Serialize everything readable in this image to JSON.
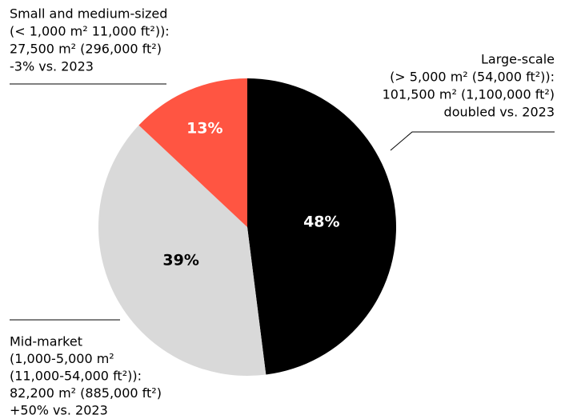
{
  "chart_data": {
    "type": "pie",
    "categories": [
      "Large-scale",
      "Mid-market",
      "Small and medium-sized"
    ],
    "details": [
      [
        "(> 5,000  m² (54,000 ft²)):",
        "101,500 m² (1,100,000 ft²)",
        "doubled vs. 2023"
      ],
      [
        "(1,000-5,000 m²",
        "(11,000-54,000 ft²)):",
        "82,200 m² (885,000 ft²)",
        "+50% vs. 2023"
      ],
      [
        "(< 1,000 m² 11,000 ft²)):",
        "27,500 m² (296,000 ft²)",
        "-3% vs. 2023"
      ]
    ],
    "values": [
      48,
      39,
      13
    ],
    "value_labels": [
      "48%",
      "39%",
      "13%"
    ],
    "colors": [
      "#000000",
      "#d9d9d9",
      "#ff5542"
    ],
    "value_label_colors": [
      "#ffffff",
      "#000000",
      "#ffffff"
    ],
    "start_angle": 0,
    "direction": "clockwise"
  }
}
